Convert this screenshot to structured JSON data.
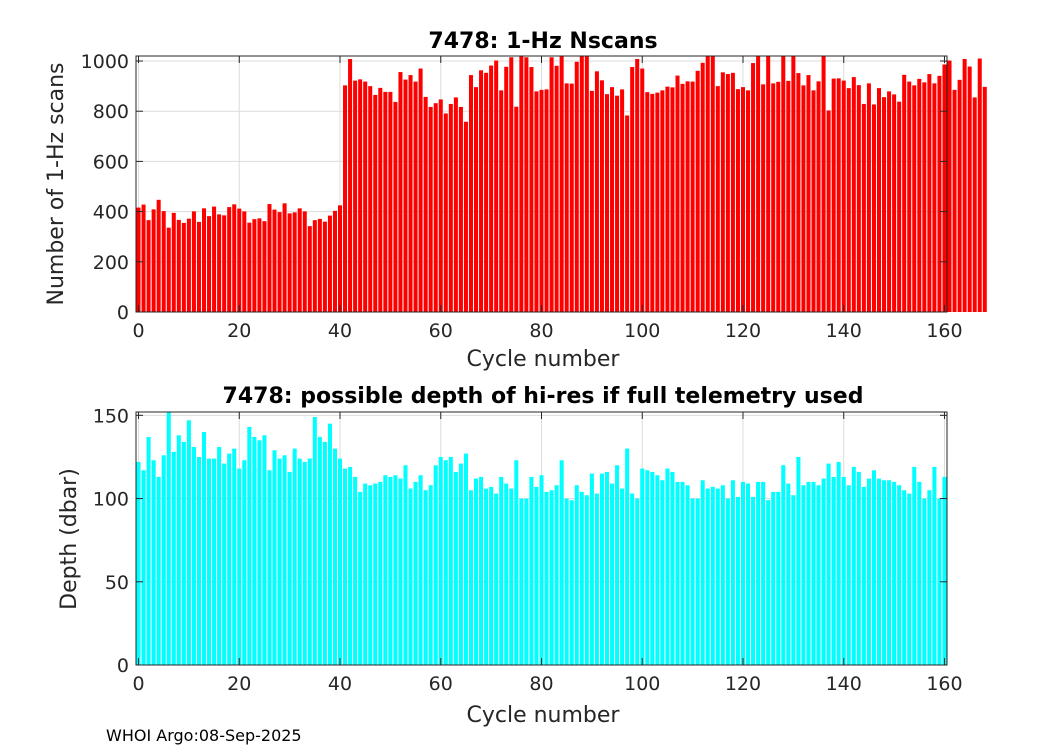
{
  "footer": "WHOI Argo:08-Sep-2025",
  "chart_data": [
    {
      "type": "bar",
      "title": "7478: 1-Hz Nscans",
      "xlabel": "Cycle number",
      "ylabel": "Number of 1-Hz scans",
      "xlim": [
        -0.5,
        160.5
      ],
      "ylim": [
        0,
        1020
      ],
      "xticks": [
        0,
        20,
        40,
        60,
        80,
        100,
        120,
        140,
        160
      ],
      "yticks": [
        0,
        200,
        400,
        600,
        800,
        1000
      ],
      "grid": true,
      "bar_color": "#ff0000",
      "x_start": 0,
      "values": [
        416,
        428,
        366,
        409,
        447,
        402,
        336,
        395,
        367,
        355,
        372,
        401,
        359,
        413,
        382,
        420,
        389,
        385,
        418,
        429,
        412,
        401,
        356,
        370,
        373,
        362,
        430,
        408,
        398,
        433,
        393,
        397,
        413,
        401,
        342,
        366,
        371,
        360,
        384,
        403,
        425,
        903,
        1008,
        922,
        927,
        918,
        900,
        865,
        893,
        877,
        877,
        837,
        956,
        926,
        944,
        918,
        970,
        857,
        817,
        832,
        847,
        791,
        829,
        855,
        817,
        758,
        944,
        896,
        963,
        953,
        982,
        1002,
        883,
        977,
        1015,
        818,
        1020,
        1015,
        976,
        879,
        885,
        887,
        1015,
        981,
        1020,
        911,
        910,
        997,
        1018,
        1020,
        881,
        959,
        923,
        868,
        896,
        862,
        887,
        783,
        976,
        1008,
        970,
        876,
        869,
        874,
        883,
        898,
        895,
        942,
        909,
        919,
        918,
        961,
        993,
        1020,
        1020,
        900,
        955,
        948,
        953,
        888,
        896,
        883,
        992,
        1020,
        907,
        1020,
        911,
        917,
        1020,
        921,
        1020,
        952,
        903,
        944,
        883,
        919,
        1020,
        803,
        930,
        931,
        922,
        892,
        936,
        904,
        829,
        911,
        827,
        892,
        856,
        879,
        867,
        838,
        945,
        918,
        903,
        929,
        915,
        948,
        911,
        941,
        986,
        1002,
        885,
        925,
        1008,
        978,
        855,
        1010,
        897
      ]
    },
    {
      "type": "bar",
      "title": "7478: possible depth of hi-res if full telemetry used",
      "xlabel": "Cycle number",
      "ylabel": "Depth (dbar)",
      "xlim": [
        -0.5,
        160.5
      ],
      "ylim": [
        0,
        152
      ],
      "xticks": [
        0,
        20,
        40,
        60,
        80,
        100,
        120,
        140,
        160
      ],
      "yticks": [
        0,
        50,
        100,
        150
      ],
      "grid": true,
      "bar_color": "#00ffff",
      "x_start": 0,
      "values": [
        122,
        117,
        137,
        123,
        113,
        126,
        152,
        128,
        138,
        134,
        147,
        131,
        125,
        140,
        124,
        124,
        131,
        121,
        127,
        130,
        118,
        123,
        143,
        137,
        135,
        138,
        117,
        129,
        124,
        126,
        116,
        130,
        124,
        122,
        124,
        149,
        137,
        134,
        145,
        130,
        124,
        118,
        119,
        113,
        104,
        109,
        108,
        109,
        110,
        114,
        113,
        114,
        112,
        120,
        106,
        110,
        114,
        105,
        108,
        120,
        125,
        123,
        125,
        116,
        121,
        127,
        105,
        112,
        113,
        106,
        107,
        103,
        113,
        109,
        106,
        123,
        100,
        100,
        113,
        107,
        114,
        104,
        105,
        108,
        123,
        100,
        99,
        108,
        104,
        102,
        115,
        103,
        115,
        116,
        109,
        120,
        106,
        130,
        103,
        100,
        118,
        117,
        116,
        114,
        111,
        118,
        116,
        110,
        110,
        108,
        100,
        100,
        111,
        106,
        107,
        106,
        108,
        100,
        111,
        101,
        110,
        109,
        101,
        110,
        110,
        99,
        104,
        104,
        120,
        109,
        102,
        125,
        108,
        110,
        110,
        108,
        112,
        121,
        113,
        122,
        113,
        108,
        119,
        116,
        107,
        112,
        117,
        112,
        111,
        111,
        110,
        108,
        105,
        103,
        119,
        110,
        100,
        105,
        119,
        100,
        113
      ]
    }
  ]
}
